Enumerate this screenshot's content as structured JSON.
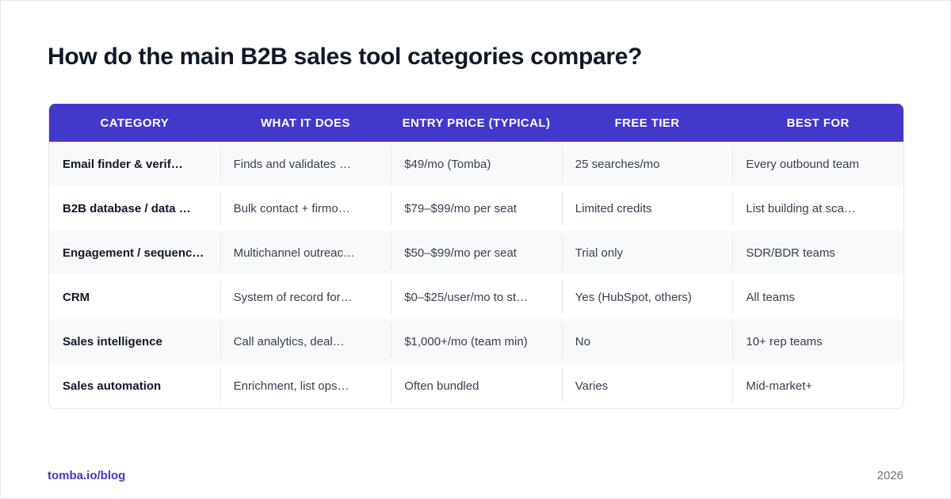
{
  "header": {
    "title": "How do the main B2B sales tool categories compare?"
  },
  "table": {
    "columns": [
      "CATEGORY",
      "WHAT IT DOES",
      "ENTRY PRICE (TYPICAL)",
      "FREE TIER",
      "BEST FOR"
    ],
    "rows": [
      [
        "Email finder & verif…",
        "Finds and validates …",
        "$49/mo (Tomba)",
        "25 searches/mo",
        "Every outbound team"
      ],
      [
        "B2B database / data …",
        "Bulk contact + firmo…",
        "$79–$99/mo per seat",
        "Limited credits",
        "List building at sca…"
      ],
      [
        "Engagement / sequenc…",
        "Multichannel outreac…",
        "$50–$99/mo per seat",
        "Trial only",
        "SDR/BDR teams"
      ],
      [
        "CRM",
        "System of record for…",
        "$0–$25/user/mo to st…",
        "Yes (HubSpot, others)",
        "All teams"
      ],
      [
        "Sales intelligence",
        "Call analytics, deal…",
        "$1,000+/mo (team min)",
        "No",
        "10+ rep teams"
      ],
      [
        "Sales automation",
        "Enrichment, list ops…",
        "Often bundled",
        "Varies",
        "Mid-market+"
      ]
    ]
  },
  "footer": {
    "source": "tomba.io/blog",
    "year": "2026"
  }
}
